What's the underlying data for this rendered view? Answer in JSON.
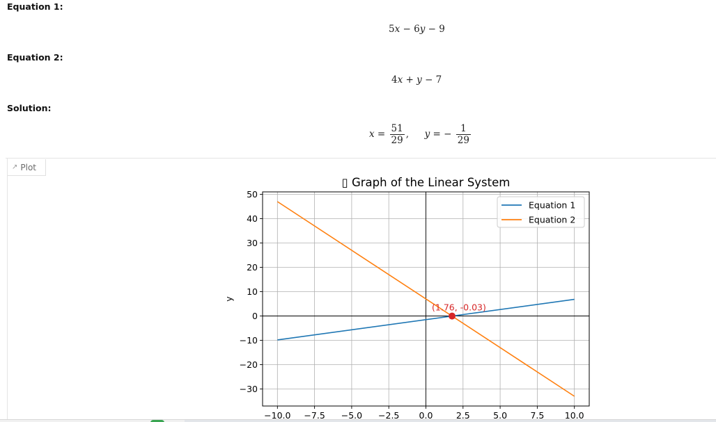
{
  "equation1": {
    "label": "Equation 1:",
    "a": "5",
    "xvar": "x",
    "op1": "−",
    "b": "6",
    "yvar": "y",
    "op2": "−",
    "c": "9"
  },
  "equation2": {
    "label": "Equation 2:",
    "a": "4",
    "xvar": "x",
    "op1": "+",
    "yvar": "y",
    "op2": "−",
    "c": "7"
  },
  "solution": {
    "label": "Solution:",
    "xvar": "x",
    "eq1": "=",
    "x_num": "51",
    "x_den": "29",
    "comma": ",",
    "yvar": "y",
    "eq2": "= −",
    "y_num": "1",
    "y_den": "29"
  },
  "tab": {
    "icon": "chart-icon",
    "label": "Plot"
  },
  "colors": {
    "equation1": "#1f77b4",
    "equation2": "#ff7f0e",
    "intersection": "#d62728",
    "grid": "#b0b0b0"
  },
  "chart_data": {
    "type": "line",
    "title": "▯ Graph of the Linear System",
    "xlabel": "",
    "ylabel": "y",
    "xlim": [
      -11,
      11
    ],
    "ylim": [
      -37,
      51
    ],
    "xticks": [
      -10,
      -7.5,
      -5,
      -2.5,
      0,
      2.5,
      5,
      7.5,
      10
    ],
    "xtick_labels": [
      "−10.0",
      "−7.5",
      "−5.0",
      "−2.5",
      "0.0",
      "2.5",
      "5.0",
      "7.5",
      "10.0"
    ],
    "yticks": [
      -30,
      -20,
      -10,
      0,
      10,
      20,
      30,
      40,
      50
    ],
    "ytick_labels": [
      "−30",
      "−20",
      "−10",
      "0",
      "10",
      "20",
      "30",
      "40",
      "50"
    ],
    "grid": true,
    "legend_position": "top-right",
    "series": [
      {
        "name": "Equation 1",
        "x": [
          -10,
          10
        ],
        "y": [
          -9.83,
          6.83
        ]
      },
      {
        "name": "Equation 2",
        "x": [
          -10,
          10
        ],
        "y": [
          47,
          -33
        ]
      }
    ],
    "intersection": {
      "x": 1.76,
      "y": -0.03,
      "label": "(1.76, -0.03)"
    }
  }
}
